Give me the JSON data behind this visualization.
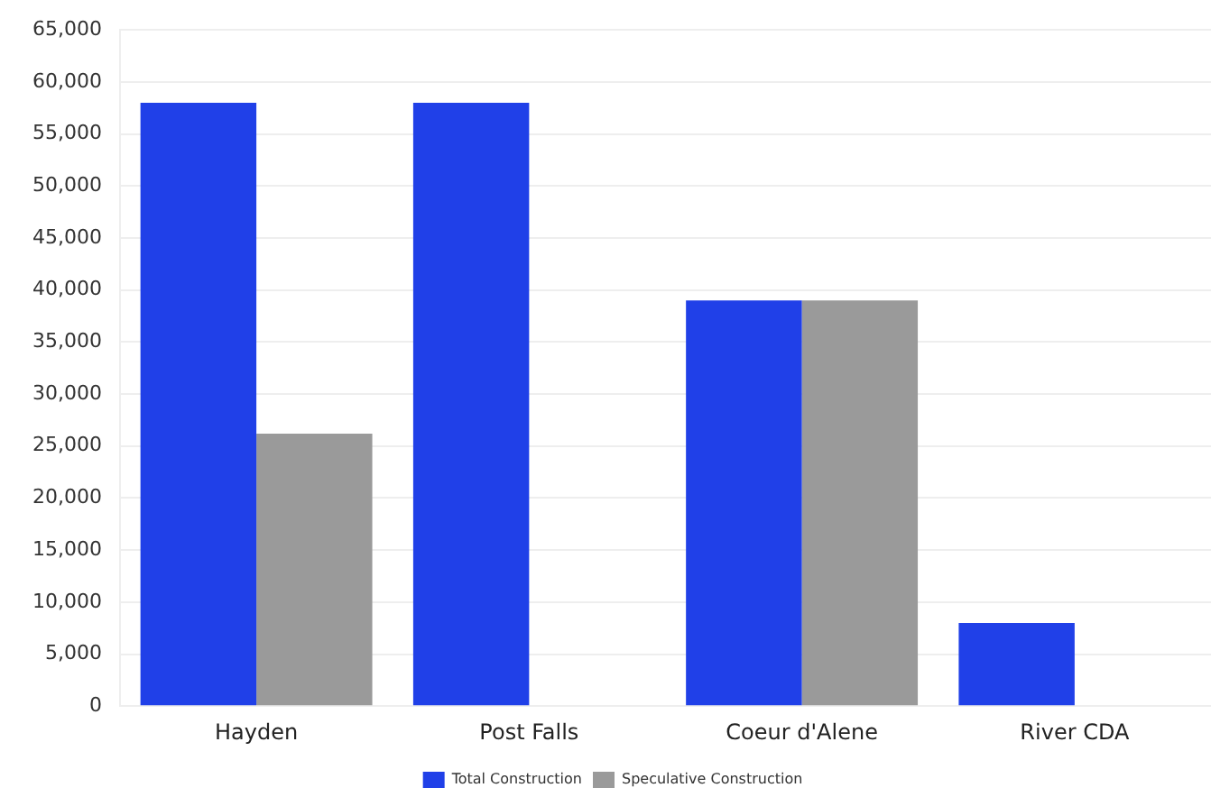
{
  "chart_data": {
    "type": "bar",
    "categories": [
      "Hayden",
      "Post Falls",
      "Coeur d'Alene",
      "River CDA"
    ],
    "series": [
      {
        "name": "Total Construction",
        "color": "#2040e8",
        "values": [
          58000,
          58000,
          39000,
          8000
        ]
      },
      {
        "name": "Speculative Construction",
        "color": "#9a9a9a",
        "values": [
          26200,
          0,
          39000,
          0
        ]
      }
    ],
    "ylim": [
      0,
      65000
    ],
    "yticks": [
      0,
      {
        "value": 5000,
        "label": "5,000"
      },
      {
        "value": 10000,
        "label": "10,000"
      },
      {
        "value": 15000,
        "label": "15,000"
      },
      {
        "value": 20000,
        "label": "20,000"
      },
      {
        "value": 25000,
        "label": "25,000"
      },
      {
        "value": 30000,
        "label": "30,000"
      },
      {
        "value": 35000,
        "label": "35,000"
      },
      {
        "value": 40000,
        "label": "40,000"
      },
      {
        "value": 45000,
        "label": "45,000"
      },
      {
        "value": 50000,
        "label": "50,000"
      },
      {
        "value": 55000,
        "label": "55,000"
      },
      {
        "value": 60000,
        "label": "60,000"
      },
      {
        "value": 65000,
        "label": "65,000"
      }
    ],
    "grid": "y",
    "legend": "bottom"
  }
}
